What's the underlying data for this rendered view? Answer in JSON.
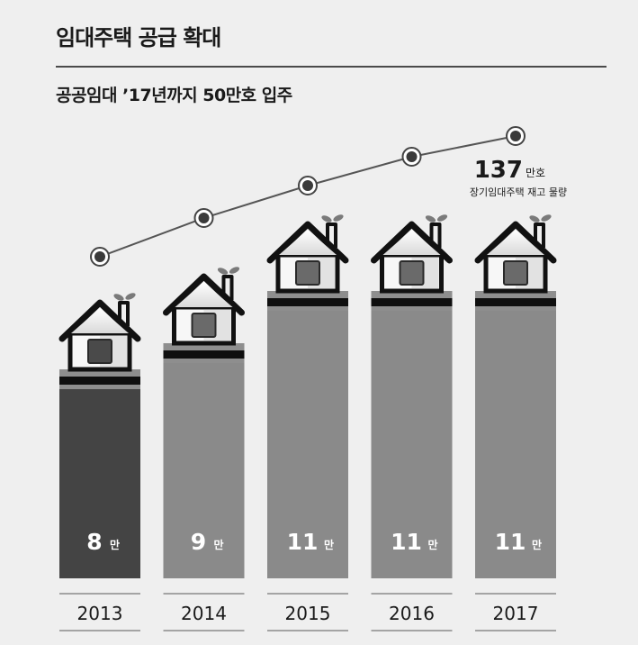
{
  "header": {
    "title": "임대주택 공급 확대",
    "subtitle": "공공임대 ’17년까지 50만호 입주"
  },
  "chart_data": {
    "type": "bar",
    "categories": [
      "2013",
      "2014",
      "2015",
      "2016",
      "2017"
    ],
    "series": [
      {
        "values": [
          8,
          9,
          11,
          11,
          11
        ],
        "value_labels": [
          "8",
          "9",
          "11",
          "11",
          "11"
        ]
      }
    ],
    "value_unit_label": "만",
    "line_series": {
      "name": "장기임대주택 재고 물량",
      "points_count": 5,
      "last_value_label": "137",
      "last_value_unit": "만호",
      "last_value_caption": "장기임대주택 재고 물량"
    },
    "colors": {
      "bar_first": "#444444",
      "bar_rest": "#8a8a8a",
      "background": "#efefef",
      "line": "#555555"
    }
  }
}
